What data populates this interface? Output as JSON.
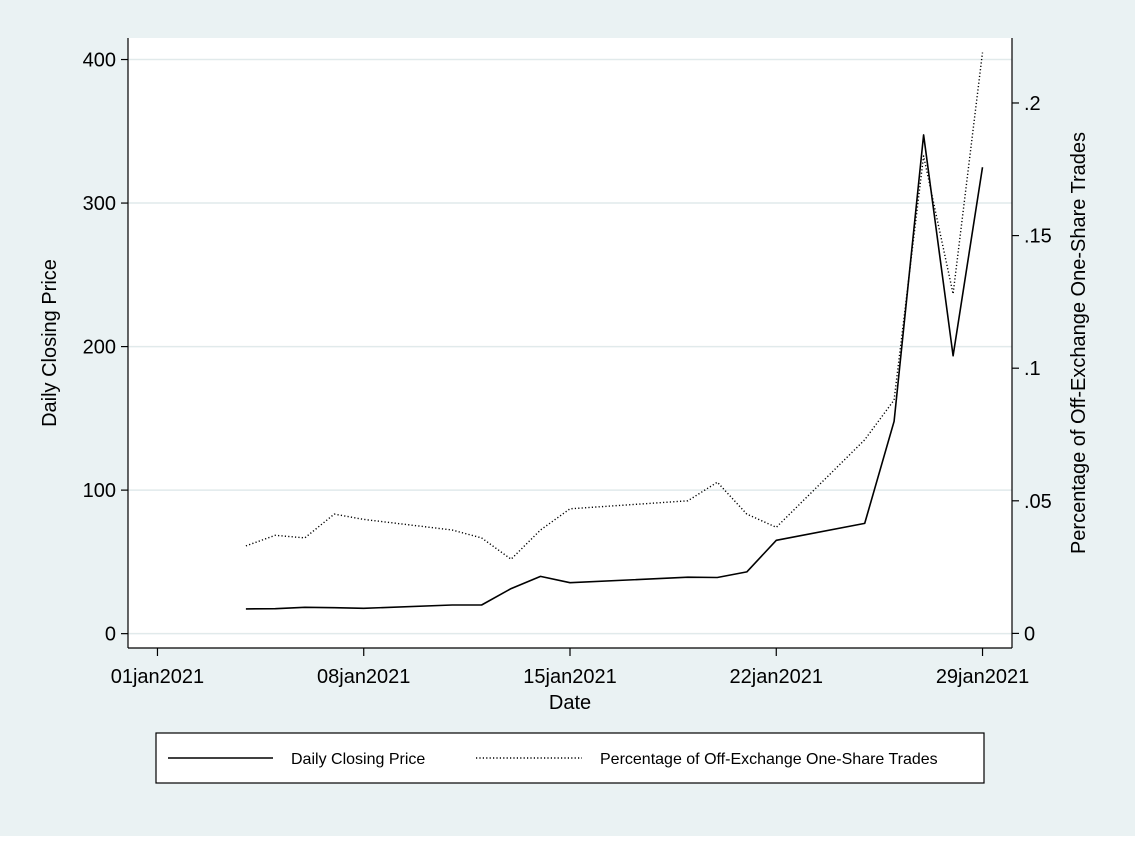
{
  "chart_data": {
    "type": "line",
    "xlabel": "Date",
    "ylabel_left": "Daily Closing Price",
    "ylabel_right": "Percentage of Off-Exchange One-Share Trades",
    "x_ticks": [
      {
        "date": "2021-01-01",
        "label": "01jan2021"
      },
      {
        "date": "2021-01-08",
        "label": "08jan2021"
      },
      {
        "date": "2021-01-15",
        "label": "15jan2021"
      },
      {
        "date": "2021-01-22",
        "label": "22jan2021"
      },
      {
        "date": "2021-01-29",
        "label": "29jan2021"
      }
    ],
    "xlim": [
      "2020-12-31",
      "2021-01-30"
    ],
    "y_left_ticks": [
      {
        "value": 0,
        "label": "0"
      },
      {
        "value": 100,
        "label": "100"
      },
      {
        "value": 200,
        "label": "200"
      },
      {
        "value": 300,
        "label": "300"
      },
      {
        "value": 400,
        "label": "400"
      }
    ],
    "ylim_left": [
      -10,
      415
    ],
    "y_right_ticks": [
      {
        "value": 0,
        "label": "0"
      },
      {
        "value": 0.05,
        "label": ".05"
      },
      {
        "value": 0.1,
        "label": ".1"
      },
      {
        "value": 0.15,
        "label": ".15"
      },
      {
        "value": 0.2,
        "label": ".2"
      }
    ],
    "ylim_right": [
      -0.0055,
      0.2245
    ],
    "grid": true,
    "legend_position": "bottom",
    "series": [
      {
        "name": "Daily Closing Price",
        "axis": "left",
        "style": "solid",
        "x": [
          "2021-01-04",
          "2021-01-05",
          "2021-01-06",
          "2021-01-07",
          "2021-01-08",
          "2021-01-11",
          "2021-01-12",
          "2021-01-13",
          "2021-01-14",
          "2021-01-15",
          "2021-01-19",
          "2021-01-20",
          "2021-01-21",
          "2021-01-22",
          "2021-01-25",
          "2021-01-26",
          "2021-01-27",
          "2021-01-28",
          "2021-01-29"
        ],
        "y": [
          17.25,
          17.37,
          18.36,
          18.08,
          17.69,
          19.94,
          19.95,
          31.4,
          39.91,
          35.5,
          39.36,
          39.12,
          43.03,
          65.01,
          76.79,
          147.98,
          347.51,
          193.6,
          325.0
        ]
      },
      {
        "name": "Percentage of Off-Exchange One-Share Trades",
        "axis": "right",
        "style": "dotted",
        "x": [
          "2021-01-04",
          "2021-01-05",
          "2021-01-06",
          "2021-01-07",
          "2021-01-08",
          "2021-01-11",
          "2021-01-12",
          "2021-01-13",
          "2021-01-14",
          "2021-01-15",
          "2021-01-19",
          "2021-01-20",
          "2021-01-21",
          "2021-01-22",
          "2021-01-25",
          "2021-01-26",
          "2021-01-27",
          "2021-01-28",
          "2021-01-29"
        ],
        "y": [
          0.033,
          0.037,
          0.036,
          0.045,
          0.043,
          0.039,
          0.036,
          0.028,
          0.039,
          0.047,
          0.05,
          0.057,
          0.045,
          0.04,
          0.073,
          0.088,
          0.18,
          0.128,
          0.219
        ]
      }
    ]
  },
  "colors": {
    "background": "#eaf2f3",
    "plot_background": "#ffffff",
    "grid": "#e1eaeb",
    "line": "#000000"
  }
}
